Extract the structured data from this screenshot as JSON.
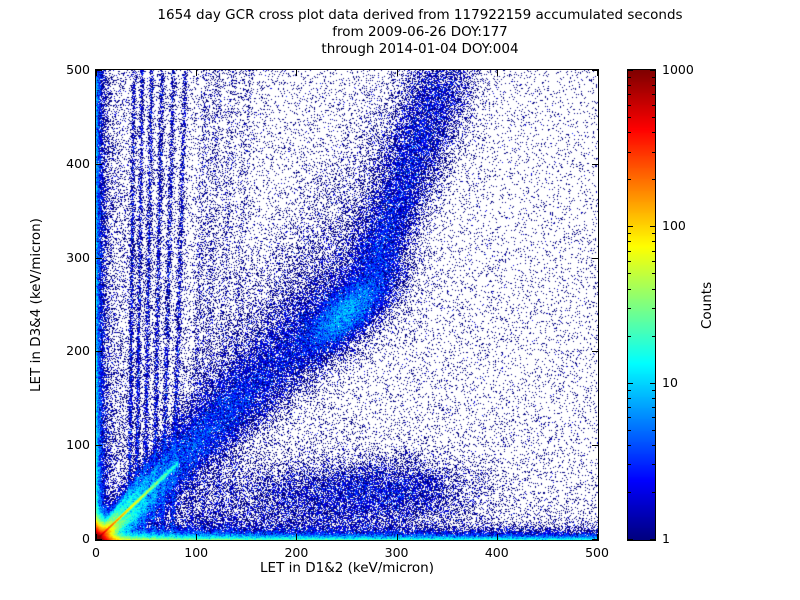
{
  "title": {
    "line1": "1654 day GCR cross plot data derived from 117922159 accumulated seconds",
    "line2": "from 2009-06-26 DOY:177",
    "line3": "through 2014-01-04 DOY:004"
  },
  "chart_data": {
    "type": "heatmap",
    "title": "1654 day GCR cross plot data derived from 117922159 accumulated seconds from 2009-06-26 DOY:177 through 2014-01-04 DOY:004",
    "xlabel": "LET in D1&2 (keV/micron)",
    "ylabel": "LET in D3&4 (keV/micron)",
    "xlim": [
      0,
      500
    ],
    "ylim": [
      0,
      500
    ],
    "xticks": [
      0,
      100,
      200,
      300,
      400,
      500
    ],
    "yticks": [
      0,
      100,
      200,
      300,
      400,
      500
    ],
    "grid": false,
    "colormap": "jet",
    "background": "#ffffff",
    "colorbar": {
      "label": "Counts",
      "scale": "log",
      "min": 1,
      "max": 1000,
      "ticks": [
        1,
        10,
        100,
        1000
      ]
    },
    "density_model": {
      "seed": 20090626,
      "bins": [
        502,
        470
      ],
      "components": [
        {
          "name": "origin-core",
          "kind": "exp2d",
          "n": 70000,
          "sx": 5,
          "sy": 5
        },
        {
          "name": "main-ridge",
          "kind": "ridge",
          "n": 22000,
          "slope": 1.0,
          "len": 30,
          "tmax": 82,
          "w0": 0.5,
          "wk": 0.015
        },
        {
          "name": "fan-ridge-1",
          "kind": "ridge",
          "n": 5200,
          "slope": 0.62,
          "len": 26,
          "tmax": 95,
          "w0": 1.0,
          "wk": 0.03
        },
        {
          "name": "fan-ridge-2",
          "kind": "ridge",
          "n": 5200,
          "slope": 0.78,
          "len": 26,
          "tmax": 95,
          "w0": 1.0,
          "wk": 0.03
        },
        {
          "name": "fan-ridge-3",
          "kind": "ridge",
          "n": 4600,
          "slope": 1.25,
          "len": 24,
          "tmax": 90,
          "w0": 1.1,
          "wk": 0.035
        },
        {
          "name": "fan-ridge-4",
          "kind": "ridge",
          "n": 3600,
          "slope": 1.55,
          "len": 22,
          "tmax": 85,
          "w0": 1.3,
          "wk": 0.04
        },
        {
          "name": "fan-ridge-5",
          "kind": "ridge",
          "n": 3000,
          "slope": 0.45,
          "len": 30,
          "tmax": 100,
          "w0": 1.4,
          "wk": 0.04
        },
        {
          "name": "diag-band",
          "kind": "segment",
          "n": 46000,
          "p0": [
            0,
            0
          ],
          "p1": [
            280,
            290
          ],
          "bias": 1.8,
          "w0": 5,
          "w1": 30
        },
        {
          "name": "band-blob",
          "kind": "blob",
          "n": 14000,
          "c": [
            250,
            242
          ],
          "angle": 45,
          "sa": 30,
          "sp": 12
        },
        {
          "name": "band-upturn",
          "kind": "segment",
          "n": 16000,
          "p0": [
            275,
            285
          ],
          "p1": [
            350,
            505
          ],
          "bias": 1.15,
          "w0": 14,
          "w1": 20
        },
        {
          "name": "band-fill",
          "kind": "segment",
          "n": 9000,
          "p0": [
            110,
            120
          ],
          "p1": [
            335,
            475
          ],
          "bias": 1.3,
          "w0": 26,
          "w1": 32
        },
        {
          "name": "streak-1",
          "kind": "vline",
          "n": 2300,
          "x0": 33,
          "tilt": 0.01,
          "ypow": 1.35,
          "w": 1.2
        },
        {
          "name": "streak-2",
          "kind": "vline",
          "n": 2300,
          "x0": 40,
          "tilt": 0.012,
          "ypow": 1.35,
          "w": 1.2
        },
        {
          "name": "streak-3",
          "kind": "vline",
          "n": 2300,
          "x0": 48,
          "tilt": 0.015,
          "ypow": 1.35,
          "w": 1.3
        },
        {
          "name": "streak-4",
          "kind": "vline",
          "n": 2300,
          "x0": 57,
          "tilt": 0.018,
          "ypow": 1.35,
          "w": 1.3
        },
        {
          "name": "streak-5",
          "kind": "vline",
          "n": 2300,
          "x0": 66,
          "tilt": 0.022,
          "ypow": 1.35,
          "w": 1.4
        },
        {
          "name": "streak-6",
          "kind": "vline",
          "n": 2300,
          "x0": 76,
          "tilt": 0.026,
          "ypow": 1.35,
          "w": 1.5
        },
        {
          "name": "column-1",
          "kind": "vline",
          "n": 1300,
          "x0": 95,
          "tilt": 0.03,
          "ypow": 1.5,
          "w": 3
        },
        {
          "name": "column-2",
          "kind": "vline",
          "n": 1300,
          "x0": 106,
          "tilt": 0.03,
          "ypow": 1.5,
          "w": 3
        },
        {
          "name": "column-3",
          "kind": "vline",
          "n": 1200,
          "x0": 120,
          "tilt": 0.032,
          "ypow": 1.6,
          "w": 3.5
        },
        {
          "name": "column-4",
          "kind": "vline",
          "n": 1100,
          "x0": 134,
          "tilt": 0.034,
          "ypow": 1.7,
          "w": 3.5
        },
        {
          "name": "bottom-band",
          "kind": "hexp",
          "n": 30000,
          "ys": 5,
          "xpow": 2.2
        },
        {
          "name": "bottom-row",
          "kind": "hexp",
          "n": 16000,
          "ys": 2,
          "xpow": 1.5
        },
        {
          "name": "left-column",
          "kind": "vexp",
          "n": 14000,
          "xs": 3.5,
          "ypow": 1.5
        },
        {
          "name": "lower-cloud-1",
          "kind": "blob",
          "n": 10000,
          "c": [
            235,
            42
          ],
          "angle": 0,
          "sa": 65,
          "sp": 22
        },
        {
          "name": "lower-cloud-2",
          "kind": "blob",
          "n": 4000,
          "c": [
            300,
            55
          ],
          "angle": 0,
          "sa": 40,
          "sp": 18
        },
        {
          "name": "bg-left",
          "kind": "bg",
          "n": 30000,
          "xpow": 2.0,
          "ypow": 1.4
        },
        {
          "name": "bg-uniform",
          "kind": "bg",
          "n": 7000,
          "xpow": 1.0,
          "ypow": 1.0
        }
      ]
    }
  }
}
